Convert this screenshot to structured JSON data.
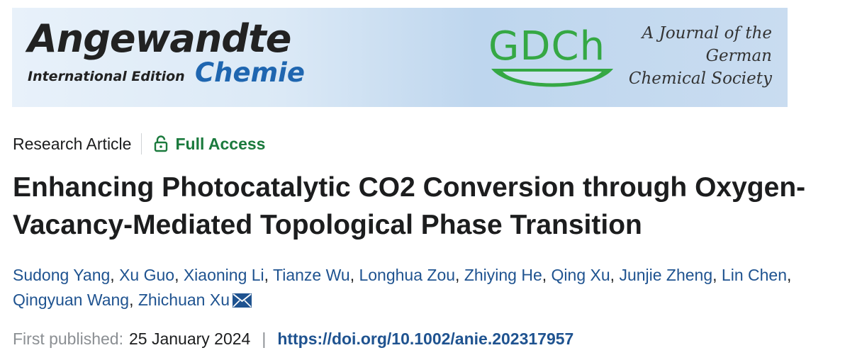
{
  "banner": {
    "brand_main": "Angewandte",
    "brand_sub": "International Edition",
    "brand_chemie": "Chemie",
    "society_logo": "GDCh",
    "society_tagline": [
      "A Journal of the",
      "German",
      "Chemical Society"
    ]
  },
  "meta": {
    "article_type": "Research Article",
    "access_label": "Full Access",
    "access_color": "#1b7a3d"
  },
  "title": "Enhancing Photocatalytic CO2 Conversion through Oxygen-Vacancy-Mediated Topological Phase Transition",
  "authors": [
    "Sudong Yang",
    "Xu Guo",
    "Xiaoning Li",
    "Tianze Wu",
    "Longhua Zou",
    "Zhiying He",
    "Qing Xu",
    "Junjie Zheng",
    "Lin Chen",
    "Qingyuan Wang",
    "Zhichuan Xu"
  ],
  "author_separator": ",",
  "publication": {
    "label": "First published:",
    "date": "25 January 2024",
    "separator": "|",
    "doi": "https://doi.org/10.1002/anie.202317957"
  },
  "icons": {
    "lock": "lock-open-icon",
    "mail": "envelope-icon"
  },
  "colors": {
    "link": "#1f5390",
    "gdch_green": "#35a844",
    "chemie_blue": "#1f66b0"
  }
}
